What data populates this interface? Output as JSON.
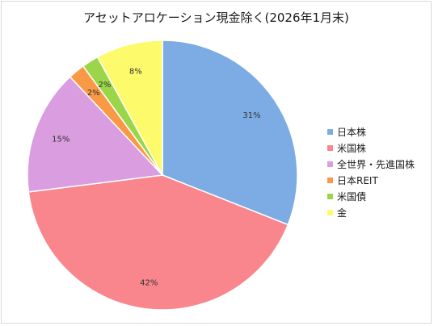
{
  "chart_data": {
    "type": "pie",
    "title": "アセットアロケーション現金除く(2026年1月末)",
    "categories": [
      "日本株",
      "米国株",
      "全世界・先進国株",
      "日本REIT",
      "米国債",
      "金"
    ],
    "values": [
      31,
      42,
      15,
      2,
      2,
      8
    ],
    "value_labels": [
      "31%",
      "42%",
      "15%",
      "2%",
      "2%",
      "8%"
    ],
    "colors": [
      "#7cace3",
      "#f8868c",
      "#da9de0",
      "#f99845",
      "#9bd64a",
      "#fdfa6b"
    ],
    "start_angle_deg": 0,
    "direction": "clockwise",
    "legend_position": "right"
  }
}
